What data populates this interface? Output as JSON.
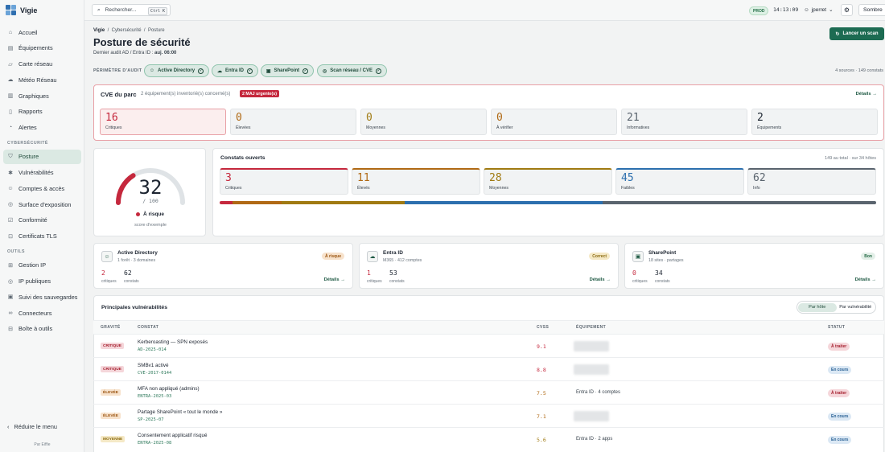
{
  "app": {
    "name": "Vigie"
  },
  "sidebar": {
    "items": [
      {
        "label": "Accueil",
        "icon": "home-icon"
      },
      {
        "label": "Équipements",
        "icon": "server-icon"
      },
      {
        "label": "Carte réseau",
        "icon": "map-icon"
      },
      {
        "label": "Météo Réseau",
        "icon": "weather-icon"
      },
      {
        "label": "Graphiques",
        "icon": "chart-icon"
      },
      {
        "label": "Rapports",
        "icon": "document-icon"
      },
      {
        "label": "Alertes",
        "icon": "bell-icon"
      }
    ],
    "section_cyber": "CYBERSÉCURITÉ",
    "cyber_items": [
      {
        "label": "Posture",
        "icon": "shield-icon"
      },
      {
        "label": "Vulnérabilités",
        "icon": "bug-icon"
      },
      {
        "label": "Comptes & accès",
        "icon": "users-icon"
      },
      {
        "label": "Surface d'exposition",
        "icon": "globe-icon"
      },
      {
        "label": "Conformité",
        "icon": "checklist-icon"
      },
      {
        "label": "Certificats TLS",
        "icon": "lock-icon"
      }
    ],
    "section_tools": "OUTILS",
    "tool_items": [
      {
        "label": "Gestion IP",
        "icon": "grid-icon"
      },
      {
        "label": "IP publiques",
        "icon": "globe-icon"
      },
      {
        "label": "Suivi des sauvegardes",
        "icon": "backup-icon"
      },
      {
        "label": "Connecteurs",
        "icon": "link-icon"
      },
      {
        "label": "Boîte à outils",
        "icon": "toolbox-icon"
      }
    ],
    "collapse_label": "Réduire le menu",
    "footer": "Par Eiffie"
  },
  "topbar": {
    "search_placeholder": "Rechercher...",
    "shortcut": "Ctrl K",
    "env_badge": "PROD",
    "clock": "14:13:09",
    "user": "jperret",
    "theme_label": "Sombre"
  },
  "page": {
    "breadcrumb": [
      "Vigie",
      "Cybersécurité",
      "Posture"
    ],
    "title": "Posture de sécurité",
    "subtitle": "Dernier audit AD / Entra ID : ",
    "subtitle_value": "auj. 06:00",
    "scan_button": "Lancer un scan"
  },
  "perimeter": {
    "label": "PÉRIMÈTRE D'AUDIT",
    "chips": [
      "Active Directory",
      "Entra ID",
      "SharePoint",
      "Scan réseau / CVE"
    ],
    "summary": "4 sources · 149 constats"
  },
  "cve": {
    "title": "CVE du parc",
    "subtitle": "2 équipement(s) inventorié(s) concerné(s)",
    "urgent_badge": "2 MAJ urgente(s)",
    "details": "Détails →",
    "stats": [
      {
        "value": "16",
        "label": "Critiques"
      },
      {
        "value": "0",
        "label": "Élevées"
      },
      {
        "value": "0",
        "label": "Moyennes"
      },
      {
        "value": "0",
        "label": "À vérifier"
      },
      {
        "value": "21",
        "label": "Informatives"
      },
      {
        "value": "2",
        "label": "Équipements"
      }
    ]
  },
  "score": {
    "value": "32",
    "max": "/ 100",
    "max_value": 100,
    "status": "À risque",
    "caption": "score d'exemple"
  },
  "findings": {
    "title": "Constats ouverts",
    "summary": "149 au total · sur 34 hôtes",
    "stats": [
      {
        "value": "3",
        "label": "Critiques"
      },
      {
        "value": "11",
        "label": "Élevés"
      },
      {
        "value": "28",
        "label": "Moyennes"
      },
      {
        "value": "45",
        "label": "Faibles"
      },
      {
        "value": "62",
        "label": "Info"
      }
    ]
  },
  "sources": [
    {
      "name": "Active Directory",
      "meta": "1 forêt · 3 domaines",
      "status": "À risque",
      "crit": "2",
      "findings": "62",
      "crit_label": "critiques",
      "find_label": "constats",
      "details": "Détails →",
      "icon": "user-icon"
    },
    {
      "name": "Entra ID",
      "meta": "M365 · 412 comptes",
      "status": "Correct",
      "crit": "1",
      "findings": "53",
      "crit_label": "critiques",
      "find_label": "constats",
      "details": "Détails →",
      "icon": "cloud-icon"
    },
    {
      "name": "SharePoint",
      "meta": "18 sites · partages",
      "status": "Bon",
      "crit": "0",
      "findings": "34",
      "crit_label": "critiques",
      "find_label": "constats",
      "details": "Détails →",
      "icon": "folder-icon"
    }
  ],
  "vulns": {
    "title": "Principales vulnérabilités",
    "toggle": [
      "Par hôte",
      "Par vulnérabilité"
    ],
    "headers": [
      "GRAVITÉ",
      "CONSTAT",
      "CVSS",
      "ÉQUIPEMENT",
      "STATUT"
    ],
    "rows": [
      {
        "severity": "CRITIQUE",
        "sev": "crit",
        "title": "Kerberoasting — SPN exposés",
        "id": "AD-2025-014",
        "cvss": "9.1",
        "equipment": "",
        "status": "À traiter",
        "st": "todo"
      },
      {
        "severity": "CRITIQUE",
        "sev": "crit",
        "title": "SMBv1 activé",
        "id": "CVE-2017-0144",
        "cvss": "8.8",
        "equipment": "",
        "status": "En cours",
        "st": "prog"
      },
      {
        "severity": "ÉLEVÉE",
        "sev": "high",
        "title": "MFA non appliqué (admins)",
        "id": "ENTRA-2025-03",
        "cvss": "7.5",
        "equipment": "Entra ID · 4 comptes",
        "status": "À traiter",
        "st": "todo"
      },
      {
        "severity": "ÉLEVÉE",
        "sev": "high",
        "title": "Partage SharePoint « tout le monde »",
        "id": "SP-2025-07",
        "cvss": "7.1",
        "equipment": "",
        "status": "En cours",
        "st": "prog"
      },
      {
        "severity": "MOYENNE",
        "sev": "med",
        "title": "Consentement applicatif risqué",
        "id": "ENTRA-2025-08",
        "cvss": "5.6",
        "equipment": "Entra ID · 2 apps",
        "status": "En cours",
        "st": "prog"
      }
    ]
  },
  "colors": {
    "accent": "#1c6b52",
    "critical": "#c5283d",
    "high": "#b06914",
    "medium": "#a07a12",
    "low": "#2c6fae",
    "info": "#5a646e"
  }
}
